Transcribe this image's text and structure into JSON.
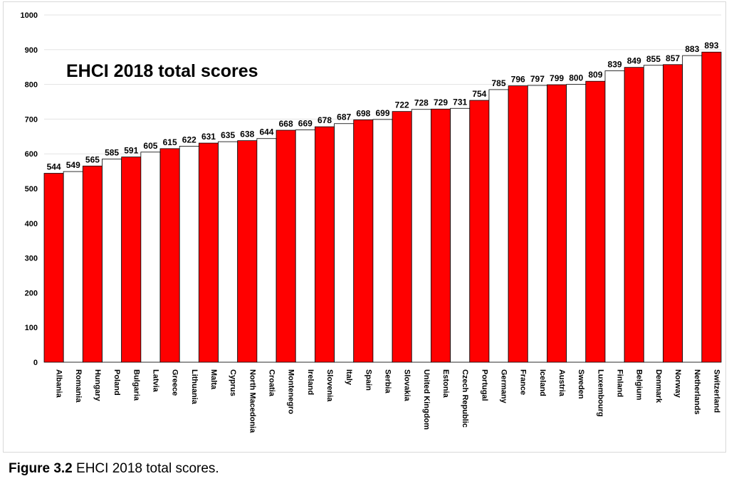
{
  "chart_data": {
    "type": "bar",
    "title": "EHCI 2018 total scores",
    "xlabel": "",
    "ylabel": "",
    "ylim": [
      0,
      1000
    ],
    "y_ticks": [
      0,
      100,
      200,
      300,
      400,
      500,
      600,
      700,
      800,
      900,
      1000
    ],
    "grid": true,
    "bar_fill_alternating": [
      "#ff0000",
      "#ffffff"
    ],
    "bar_outline": "#000000",
    "categories": [
      "Albania",
      "Romania",
      "Hungary",
      "Poland",
      "Bulgaria",
      "Latvia",
      "Greece",
      "Lithuania",
      "Malta",
      "Cyprus",
      "North Macedonia",
      "Croatia",
      "Montenegro",
      "Ireland",
      "Slovenia",
      "Italy",
      "Spain",
      "Serbia",
      "Slovakia",
      "United Kingdom",
      "Estonia",
      "Czech Republic",
      "Portugal",
      "Germany",
      "France",
      "Iceland",
      "Austria",
      "Sweden",
      "Luxembourg",
      "Finland",
      "Belgium",
      "Denmark",
      "Norway",
      "Netherlands",
      "Switzerland"
    ],
    "values": [
      544,
      549,
      565,
      585,
      591,
      605,
      615,
      622,
      631,
      635,
      638,
      644,
      668,
      669,
      678,
      687,
      698,
      699,
      722,
      728,
      729,
      731,
      754,
      785,
      796,
      797,
      799,
      800,
      809,
      839,
      849,
      855,
      857,
      883,
      893
    ]
  },
  "caption": {
    "label": "Figure 3.2",
    "text": "EHCI 2018 total scores."
  }
}
